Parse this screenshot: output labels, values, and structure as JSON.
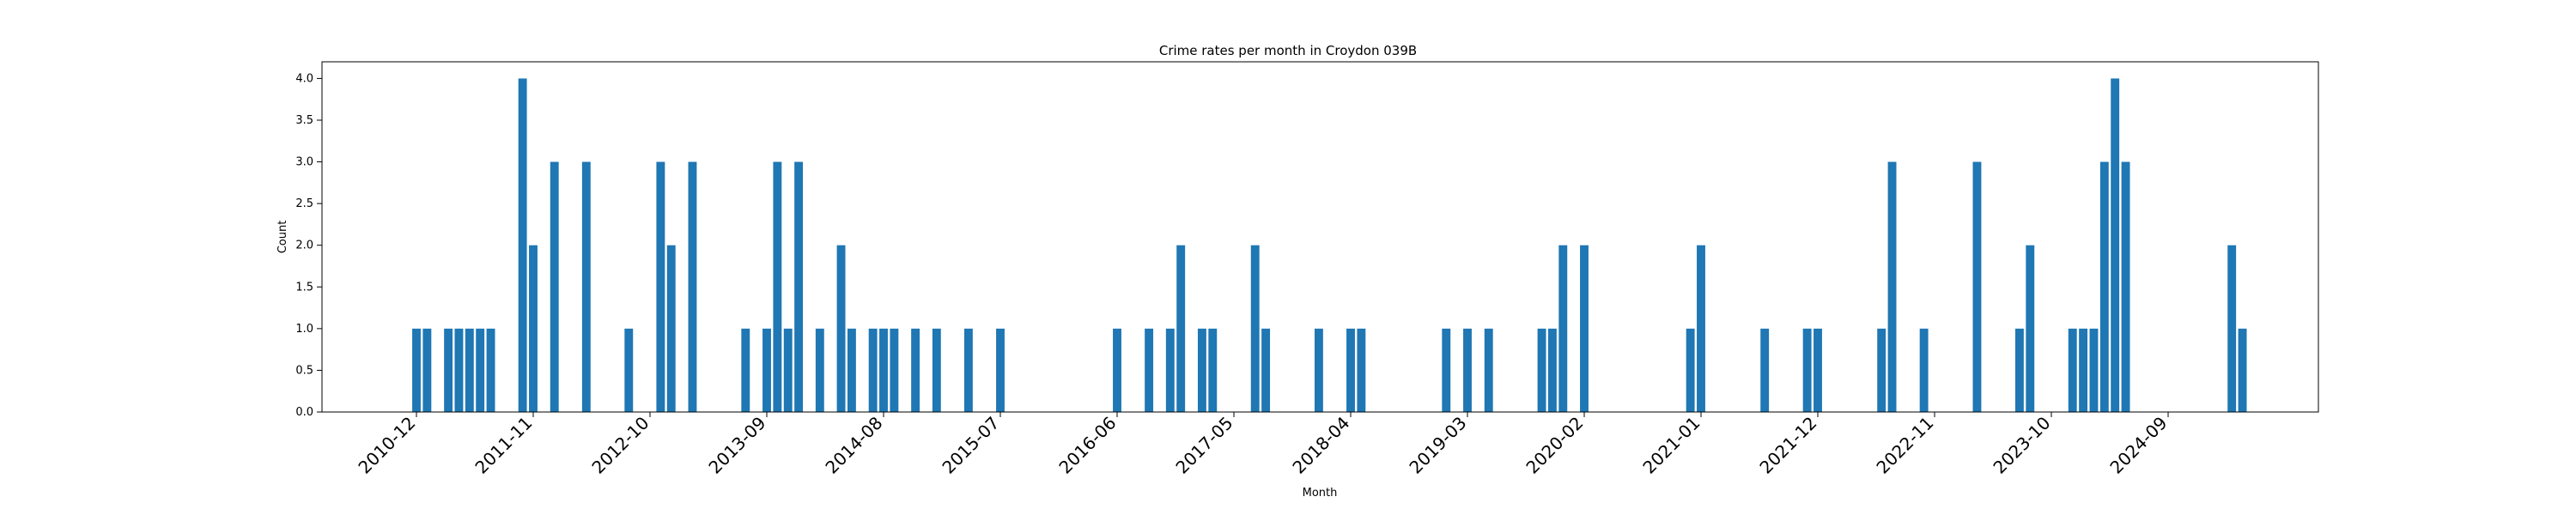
{
  "chart_data": {
    "type": "bar",
    "title": "Crime rates per month in Croydon 039B",
    "xlabel": "Month",
    "ylabel": "Count",
    "ylim": [
      0,
      4.2
    ],
    "yticks": [
      0.0,
      0.5,
      1.0,
      1.5,
      2.0,
      2.5,
      3.0,
      3.5,
      4.0
    ],
    "ytick_labels": [
      "0.0",
      "0.5",
      "1.0",
      "1.5",
      "2.0",
      "2.5",
      "3.0",
      "3.5",
      "4.0"
    ],
    "xticks": [
      "2010-12",
      "2011-11",
      "2012-10",
      "2013-09",
      "2014-08",
      "2015-07",
      "2016-06",
      "2017-05",
      "2018-04",
      "2019-03",
      "2020-02",
      "2021-01",
      "2021-12",
      "2022-11",
      "2023-10",
      "2024-09"
    ],
    "bar_color": "#1f77b4",
    "grid": false,
    "categories": [
      "2010-12",
      "2011-01",
      "2011-03",
      "2011-04",
      "2011-05",
      "2011-06",
      "2011-07",
      "2011-10",
      "2011-11",
      "2012-01",
      "2012-04",
      "2012-08",
      "2012-11",
      "2012-12",
      "2013-02",
      "2013-07",
      "2013-09",
      "2013-10",
      "2013-11",
      "2013-12",
      "2014-02",
      "2014-04",
      "2014-05",
      "2014-07",
      "2014-08",
      "2014-09",
      "2014-11",
      "2015-01",
      "2015-04",
      "2015-07",
      "2016-06",
      "2016-09",
      "2016-11",
      "2016-12",
      "2017-02",
      "2017-03",
      "2017-07",
      "2017-08",
      "2018-01",
      "2018-04",
      "2018-05",
      "2019-01",
      "2019-03",
      "2019-05",
      "2019-10",
      "2019-11",
      "2019-12",
      "2020-02",
      "2020-12",
      "2021-01",
      "2021-07",
      "2021-11",
      "2021-12",
      "2022-06",
      "2022-07",
      "2022-10",
      "2023-03",
      "2023-07",
      "2023-08",
      "2023-12",
      "2024-01",
      "2024-02",
      "2024-03",
      "2024-04",
      "2024-05",
      "2025-03",
      "2025-04"
    ],
    "values": [
      1,
      1,
      1,
      1,
      1,
      1,
      1,
      4,
      2,
      3,
      3,
      1,
      3,
      2,
      3,
      1,
      1,
      3,
      1,
      3,
      1,
      2,
      1,
      1,
      1,
      1,
      1,
      1,
      1,
      1,
      1,
      1,
      1,
      2,
      1,
      1,
      2,
      1,
      1,
      1,
      1,
      1,
      1,
      1,
      1,
      1,
      2,
      2,
      1,
      2,
      1,
      1,
      1,
      1,
      3,
      1,
      3,
      1,
      2,
      1,
      1,
      1,
      3,
      4,
      3,
      2,
      1
    ]
  }
}
